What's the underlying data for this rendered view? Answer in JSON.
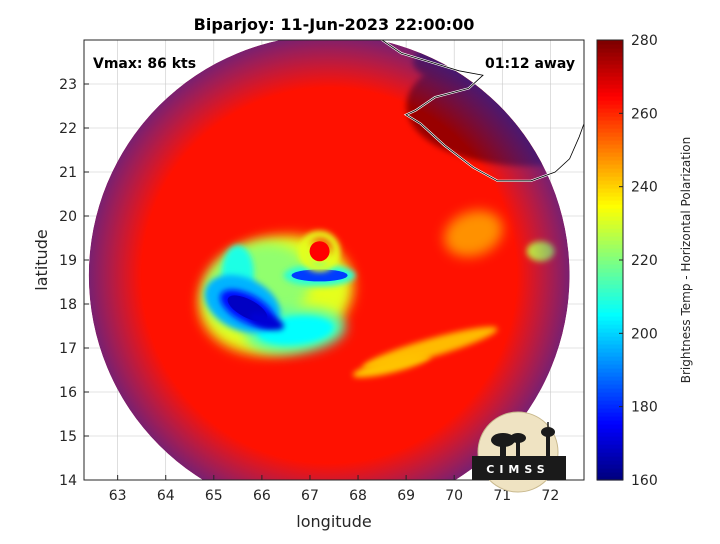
{
  "chart_data": {
    "type": "heatmap",
    "title": "Biparjoy: 11-Jun-2023 22:00:00",
    "xlabel": "longitude",
    "ylabel": "latitude",
    "xlim": [
      62.3,
      72.7
    ],
    "ylim": [
      14.0,
      24.0
    ],
    "x_ticks": [
      63,
      64,
      65,
      66,
      67,
      68,
      69,
      70,
      71,
      72
    ],
    "y_ticks": [
      14,
      15,
      16,
      17,
      18,
      19,
      20,
      21,
      22,
      23
    ],
    "grid": true,
    "colorbar": {
      "label": "Brightness Temp - Horizontal Polarization",
      "min": 160,
      "max": 280,
      "ticks": [
        160,
        180,
        200,
        220,
        240,
        260,
        280
      ],
      "colormap": "jet"
    },
    "annotations": [
      {
        "text": "Vmax: 86 kts",
        "position": "top-left"
      },
      {
        "text": "01:12 away",
        "position": "top-right"
      }
    ],
    "swath": {
      "center_lon": 67.4,
      "center_lat": 18.65,
      "radius_deg": 5.0,
      "background_value": 263
    },
    "storm_eye": {
      "lon": 67.2,
      "lat": 19.2,
      "value": 265
    },
    "features": [
      {
        "name": "coldest core",
        "lon": 65.7,
        "lat": 17.9,
        "value": 168
      },
      {
        "name": "convective band west",
        "lon": 65.5,
        "lat": 18.7,
        "value": 208
      },
      {
        "name": "rainband south",
        "lon": 66.7,
        "lat": 17.4,
        "value": 205
      },
      {
        "name": "eyewall arc north",
        "lon": 67.2,
        "lat": 18.65,
        "value": 182
      },
      {
        "name": "outer band east",
        "lon": 69.5,
        "lat": 17.0,
        "value": 243
      },
      {
        "name": "coastal land",
        "lon": 71.5,
        "lat": 22.5,
        "value": 277
      }
    ],
    "coastline": {
      "region": "Gujarat / Kutch",
      "lon_range": [
        68.5,
        72.7
      ],
      "lat_range": [
        20.7,
        24.0
      ]
    }
  },
  "logo": {
    "text": "CIMSS"
  },
  "colors": {
    "background": "#ffffff",
    "axes": "#262626",
    "grid": "#c8c8c8",
    "coast": "#ffffff"
  }
}
